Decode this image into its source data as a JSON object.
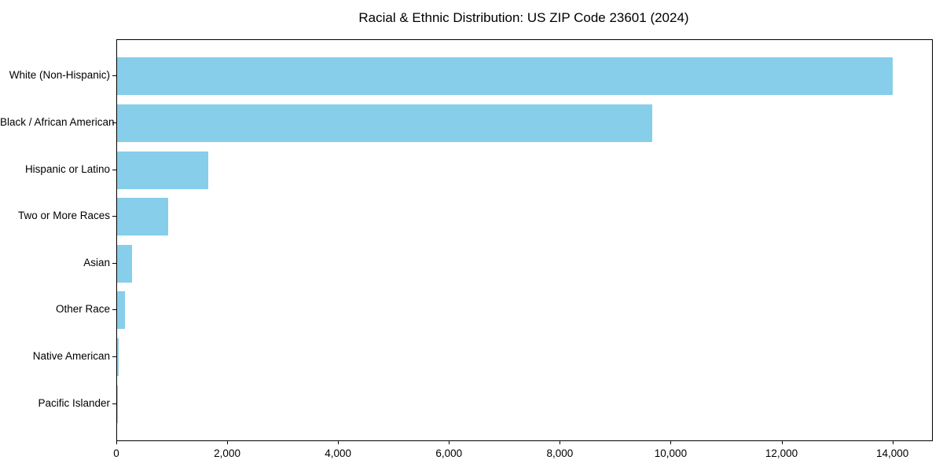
{
  "figure": {
    "background": "#ffffff"
  },
  "chart_data": {
    "type": "bar",
    "orientation": "horizontal",
    "title": "Racial & Ethnic Distribution: US ZIP Code 23601 (2024)",
    "categories": [
      "White (Non-Hispanic)",
      "Black / African American",
      "Hispanic or Latino",
      "Two or More Races",
      "Asian",
      "Other Race",
      "Native American",
      "Pacific Islander"
    ],
    "values": [
      13990,
      9660,
      1650,
      920,
      265,
      140,
      25,
      5
    ],
    "xlabel": "",
    "ylabel": "",
    "xlim": [
      0,
      14700
    ],
    "xticks": [
      0,
      2000,
      4000,
      6000,
      8000,
      10000,
      12000,
      14000
    ],
    "xtick_labels": [
      "0",
      "2,000",
      "4,000",
      "6,000",
      "8,000",
      "10,000",
      "12,000",
      "14,000"
    ],
    "bar_color": "#87CEEB",
    "axis_color": "#000000",
    "text_color": "#000000",
    "grid": false,
    "legend": null
  }
}
